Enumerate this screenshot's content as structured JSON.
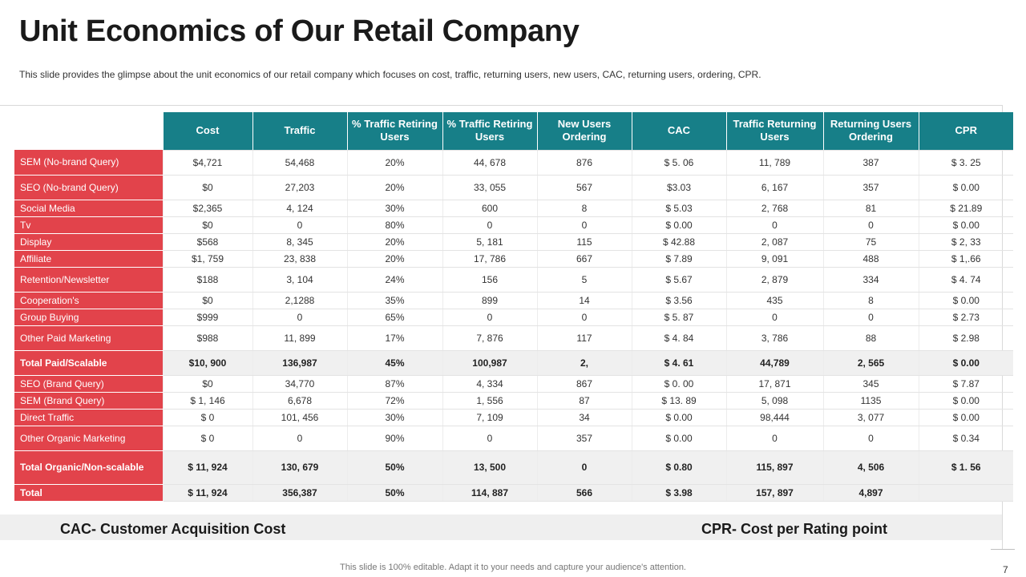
{
  "title": "Unit Economics of Our Retail Company",
  "subtitle": "This slide provides  the glimpse about the unit economics of our retail company which focuses on cost, traffic, returning users, new users, CAC, returning users, ordering,  CPR.",
  "table": {
    "headers": [
      "Cost",
      "Traffic",
      "% Traffic Retiring Users",
      "% Traffic Retiring Users",
      "New Users Ordering",
      "CAC",
      "Traffic Returning Users",
      "Returning Users Ordering",
      "CPR"
    ],
    "rows": [
      {
        "label": "SEM (No-brand Query)",
        "cells": [
          "$4,721",
          "54,468",
          "20%",
          "44, 678",
          "876",
          "$ 5. 06",
          "11, 789",
          "387",
          "$ 3. 25"
        ]
      },
      {
        "label": "SEO (No-brand Query)",
        "cells": [
          "$0",
          "27,203",
          "20%",
          "33, 055",
          "567",
          "$3.03",
          "6, 167",
          "357",
          "$ 0.00"
        ]
      },
      {
        "label": "Social Media",
        "cells": [
          "$2,365",
          "4, 124",
          "30%",
          "600",
          "8",
          "$ 5.03",
          "2, 768",
          "81",
          "$ 21.89"
        ]
      },
      {
        "label": "Tv",
        "cells": [
          "$0",
          "0",
          "80%",
          "0",
          "0",
          "$ 0.00",
          "0",
          "0",
          "$ 0.00"
        ]
      },
      {
        "label": "Display",
        "cells": [
          "$568",
          "8, 345",
          "20%",
          "5, 181",
          "115",
          "$ 42.88",
          "2, 087",
          "75",
          "$ 2, 33"
        ]
      },
      {
        "label": "Affiliate",
        "cells": [
          "$1, 759",
          "23, 838",
          "20%",
          "17, 786",
          "667",
          "$ 7.89",
          "9, 091",
          "488",
          "$ 1,.66"
        ]
      },
      {
        "label": "Retention/Newsletter",
        "cells": [
          "$188",
          "3, 104",
          "24%",
          "156",
          "5",
          "$ 5.67",
          "2, 879",
          "334",
          "$ 4. 74"
        ]
      },
      {
        "label": "Cooperation's",
        "cells": [
          "$0",
          "2,1288",
          "35%",
          "899",
          "14",
          "$ 3.56",
          "435",
          "8",
          "$ 0.00"
        ]
      },
      {
        "label": "Group Buying",
        "cells": [
          "$999",
          "0",
          "65%",
          "0",
          "0",
          "$ 5. 87",
          "0",
          "0",
          "$ 2.73"
        ]
      },
      {
        "label": "Other Paid Marketing",
        "cells": [
          "$988",
          "11, 899",
          "17%",
          "7, 876",
          "117",
          "$ 4. 84",
          "3, 786",
          "88",
          "$ 2.98"
        ]
      },
      {
        "label": "Total Paid/Scalable",
        "cells": [
          "$10, 900",
          "136,987",
          "45%",
          "100,987",
          "2,",
          "$ 4. 61",
          "44,789",
          "2, 565",
          "$ 0.00"
        ]
      },
      {
        "label": "SEO (Brand Query)",
        "cells": [
          "$0",
          "34,770",
          "87%",
          "4, 334",
          "867",
          "$ 0. 00",
          "17, 871",
          "345",
          "$ 7.87"
        ]
      },
      {
        "label": "SEM (Brand Query)",
        "cells": [
          "$ 1, 146",
          "6,678",
          "72%",
          "1, 556",
          "87",
          "$ 13. 89",
          "5, 098",
          "1135",
          "$ 0.00"
        ]
      },
      {
        "label": "Direct Traffic",
        "cells": [
          "$ 0",
          "101, 456",
          "30%",
          "7, 109",
          "34",
          "$ 0.00",
          "98,444",
          "3, 077",
          "$ 0.00"
        ]
      },
      {
        "label": "Other Organic Marketing",
        "cells": [
          "$ 0",
          "0",
          "90%",
          "0",
          "357",
          "$ 0.00",
          "0",
          "0",
          "$ 0.34"
        ]
      },
      {
        "label": "Total Organic/Non-scalable",
        "cells": [
          "$ 11, 924",
          "130, 679",
          "50%",
          "13, 500",
          "0",
          "$ 0.80",
          "115, 897",
          "4, 506",
          "$ 1. 56"
        ]
      },
      {
        "label": "Total",
        "cells": [
          "$ 11, 924",
          "356,387",
          "50%",
          "114, 887",
          "566",
          "$ 3.98",
          "157, 897",
          "4,897",
          ""
        ]
      }
    ]
  },
  "definitions": {
    "cac": "CAC- Customer Acquisition Cost",
    "cpr": "CPR- Cost per Rating point"
  },
  "footer": "This slide is 100% editable. Adapt it to your needs and capture your audience's attention.",
  "page_number": "7",
  "colors": {
    "header_teal": "#177f88",
    "label_red": "#e2434b"
  }
}
